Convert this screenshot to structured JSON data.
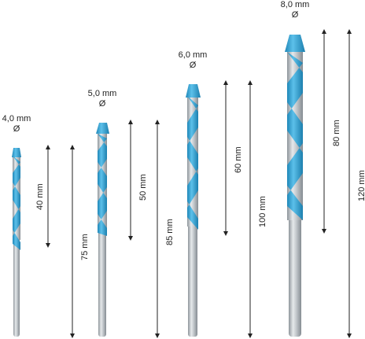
{
  "bits": [
    {
      "id": "bit-4mm",
      "diameter": "4,0 mm",
      "diameter_symbol": "Ø",
      "tip_length": "40 mm",
      "total_length": "75 mm"
    },
    {
      "id": "bit-5mm",
      "diameter": "5,0 mm",
      "diameter_symbol": "Ø",
      "tip_length": "50 mm",
      "total_length": "85 mm"
    },
    {
      "id": "bit-6mm",
      "diameter": "6,0 mm",
      "diameter_symbol": "Ø",
      "tip_length": "60 mm",
      "total_length": "100 mm"
    },
    {
      "id": "bit-8mm",
      "diameter": "8,0 mm",
      "diameter_symbol": "Ø",
      "tip_length": "80 mm",
      "total_length": "120 mm"
    }
  ],
  "colors": {
    "flute_blue": "#3aa6d6",
    "shank_grey": "#b9bec3",
    "arrow": "#222222"
  }
}
